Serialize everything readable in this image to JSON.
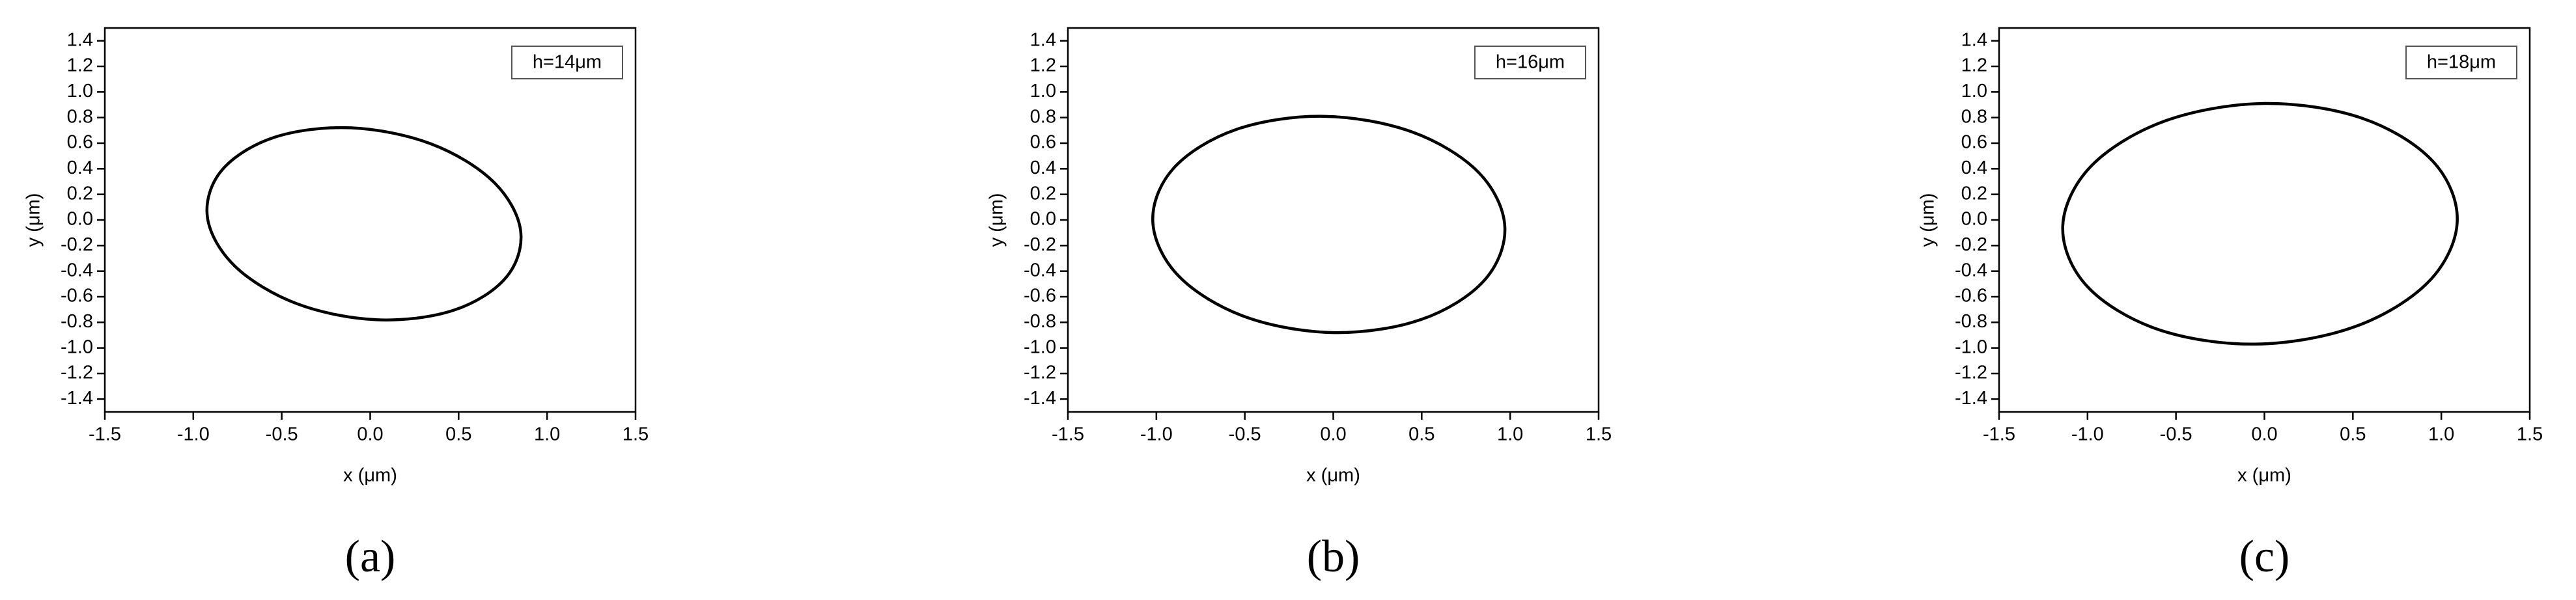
{
  "chart_data": [
    {
      "type": "line",
      "annotation": "h=14μm",
      "caption": "(a)",
      "xlabel": "x (μm)",
      "ylabel": "y (μm)",
      "color": "#000000",
      "x": [
        0.85,
        0.694,
        0.343,
        -0.11,
        -0.543,
        -0.839,
        -0.92,
        -0.764,
        -0.413,
        0.04,
        0.473,
        0.769,
        0.85
      ],
      "values": [
        -0.08,
        0.302,
        0.595,
        0.72,
        0.645,
        0.388,
        0.02,
        -0.362,
        -0.655,
        -0.78,
        -0.705,
        -0.448,
        -0.08
      ],
      "xlim": [
        -1.5,
        1.5
      ],
      "ylim": [
        -1.5,
        1.5
      ],
      "xticks": [
        -1.5,
        {
          "value": -1,
          "label": "-1.0"
        },
        -0.5,
        {
          "value": 0,
          "label": "0.0"
        },
        0.5,
        {
          "value": 1,
          "label": "1.0"
        },
        1.5
      ],
      "yticks": [
        -1.4,
        -1.2,
        {
          "value": -1,
          "label": "-1.0"
        },
        -0.8,
        -0.6,
        -0.4,
        -0.2,
        {
          "value": 0,
          "label": "0.0"
        },
        0.2,
        0.4,
        0.6,
        0.8,
        {
          "value": 1,
          "label": "1.0"
        },
        1.2,
        1.4
      ]
    },
    {
      "type": "line",
      "annotation": "h=16μm",
      "caption": "(b)",
      "xlabel": "x (μm)",
      "ylabel": "y (μm)",
      "color": "#000000",
      "x": [
        0.97,
        0.822,
        0.447,
        -0.055,
        -0.549,
        -0.902,
        -1.02,
        -0.872,
        -0.497,
        0.005,
        0.499,
        0.852,
        0.97
      ],
      "values": [
        -0.055,
        0.371,
        0.687,
        0.81,
        0.707,
        0.405,
        -0.015,
        -0.441,
        -0.757,
        -0.88,
        -0.777,
        -0.475,
        -0.055
      ],
      "xlim": [
        -1.5,
        1.5
      ],
      "ylim": [
        -1.5,
        1.5
      ],
      "xticks": [
        -1.5,
        {
          "value": -1,
          "label": "-1.0"
        },
        -0.5,
        {
          "value": 0,
          "label": "0.0"
        },
        0.5,
        {
          "value": 1,
          "label": "1.0"
        },
        1.5
      ],
      "yticks": [
        -1.4,
        -1.2,
        {
          "value": -1,
          "label": "-1.0"
        },
        -0.8,
        -0.6,
        -0.4,
        -0.2,
        {
          "value": 0,
          "label": "0.0"
        },
        0.2,
        0.4,
        0.6,
        0.8,
        {
          "value": 1,
          "label": "1.0"
        },
        1.2,
        1.4
      ]
    },
    {
      "type": "line",
      "annotation": "h=18μm",
      "caption": "(c)",
      "xlabel": "x (μm)",
      "ylabel": "y (μm)",
      "color": "#000000",
      "x": [
        1.09,
        0.953,
        0.554,
        0.0,
        -0.561,
        -0.978,
        -1.14,
        -1.003,
        -0.604,
        -0.05,
        0.511,
        0.928,
        1.09
      ],
      "values": [
        -0.01,
        0.457,
        0.794,
        0.91,
        0.774,
        0.423,
        -0.05,
        -0.517,
        -0.854,
        -0.97,
        -0.834,
        -0.483,
        -0.01
      ],
      "xlim": [
        -1.5,
        1.5
      ],
      "ylim": [
        -1.5,
        1.5
      ],
      "xticks": [
        -1.5,
        {
          "value": -1,
          "label": "-1.0"
        },
        -0.5,
        {
          "value": 0,
          "label": "0.0"
        },
        0.5,
        {
          "value": 1,
          "label": "1.0"
        },
        1.5
      ],
      "yticks": [
        -1.4,
        -1.2,
        {
          "value": -1,
          "label": "-1.0"
        },
        -0.8,
        -0.6,
        -0.4,
        -0.2,
        {
          "value": 0,
          "label": "0.0"
        },
        0.2,
        0.4,
        0.6,
        0.8,
        {
          "value": 1,
          "label": "1.0"
        },
        1.2,
        1.4
      ]
    }
  ]
}
